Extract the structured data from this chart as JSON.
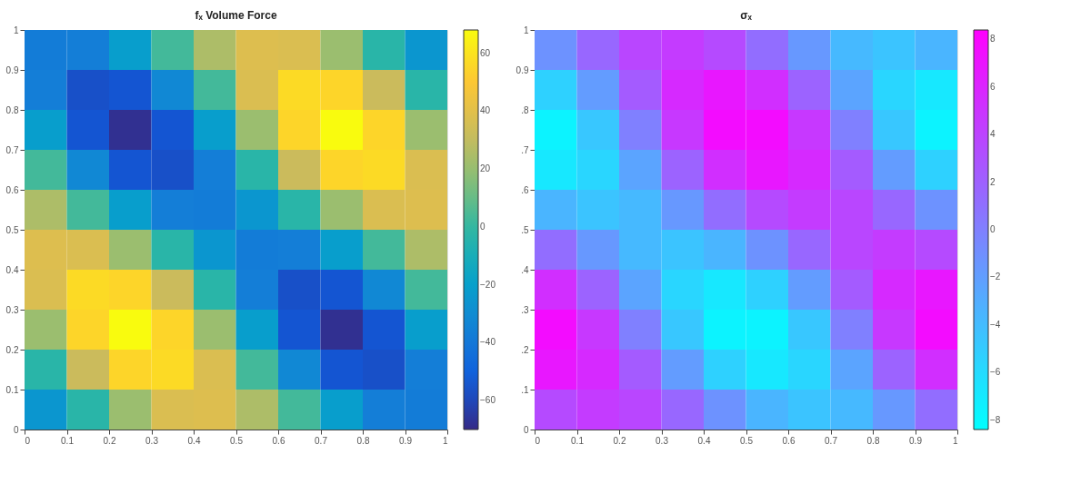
{
  "chart_data": [
    {
      "type": "heatmap",
      "title": "fₓ Volume Force",
      "x": [
        0.05,
        0.15,
        0.25,
        0.35,
        0.45,
        0.55,
        0.65,
        0.75,
        0.85,
        0.95
      ],
      "y": [
        0.95,
        0.85,
        0.75,
        0.65,
        0.55,
        0.45,
        0.35,
        0.25,
        0.15,
        0.05
      ],
      "cells": [
        [
          -38,
          -37,
          -21,
          3,
          25,
          38,
          37,
          21,
          -3,
          -25
        ],
        [
          -37,
          -57,
          -55,
          -32,
          3,
          37,
          57,
          55,
          32,
          -3
        ],
        [
          -21,
          -55,
          -68,
          -55,
          -21,
          21,
          55,
          68,
          55,
          21
        ],
        [
          3,
          -32,
          -55,
          -57,
          -37,
          -3,
          32,
          55,
          57,
          37
        ],
        [
          25,
          3,
          -21,
          -37,
          -38,
          -25,
          -3,
          21,
          37,
          38
        ],
        [
          38,
          37,
          21,
          -3,
          -25,
          -38,
          -37,
          -21,
          3,
          25
        ],
        [
          37,
          57,
          55,
          32,
          -3,
          -37,
          -57,
          -55,
          -32,
          3
        ],
        [
          21,
          55,
          68,
          55,
          21,
          -21,
          -55,
          -68,
          -55,
          -21
        ],
        [
          -3,
          32,
          55,
          57,
          37,
          3,
          -32,
          -55,
          -57,
          -37
        ],
        [
          -25,
          -3,
          21,
          37,
          38,
          25,
          3,
          -21,
          -37,
          -38
        ]
      ],
      "colors": [
        "#352a87",
        "#0f5cdd",
        "#1481d6",
        "#06a4ca",
        "#2eb7a4",
        "#87bf77",
        "#d1bb59",
        "#fec832",
        "#f9fb0e"
      ],
      "xlim": [
        0,
        1
      ],
      "ylim": [
        0,
        1
      ],
      "xticks": [
        0,
        0.1,
        0.2,
        0.3,
        0.4,
        0.5,
        0.6,
        0.7,
        0.8,
        0.9,
        1
      ],
      "yticks": [
        0,
        0.1,
        0.2,
        0.3,
        0.4,
        0.5,
        0.6,
        0.7,
        0.8,
        0.9,
        1
      ],
      "clim": [
        -70,
        68
      ],
      "cticks": [
        -60,
        -40,
        -20,
        0,
        20,
        40,
        60
      ],
      "grid": false
    },
    {
      "type": "heatmap",
      "title": "σₓ",
      "x": [
        0.05,
        0.15,
        0.25,
        0.35,
        0.45,
        0.55,
        0.65,
        0.75,
        0.85,
        0.95
      ],
      "y": [
        0.95,
        0.85,
        0.75,
        0.65,
        0.55,
        0.45,
        0.35,
        0.25,
        0.15,
        0.05
      ],
      "cells": [
        [
          -1.2,
          1.6,
          3.8,
          4.5,
          3.5,
          1.2,
          -1.6,
          -3.8,
          -4.5,
          -3.5
        ],
        [
          -5.4,
          -1.9,
          2.4,
          5.7,
          6.9,
          5.4,
          1.9,
          -2.4,
          -5.7,
          -6.9
        ],
        [
          -7.6,
          -4.7,
          0,
          4.7,
          7.6,
          7.6,
          4.7,
          0,
          -4.7,
          -7.6
        ],
        [
          -6.9,
          -5.7,
          -2.4,
          1.9,
          5.4,
          6.9,
          5.7,
          2.4,
          -1.9,
          -5.4
        ],
        [
          -3.5,
          -4.5,
          -3.8,
          -1.6,
          1.2,
          3.5,
          4.5,
          3.8,
          1.6,
          -1.2
        ],
        [
          1.2,
          -1.6,
          -3.8,
          -4.5,
          -3.5,
          -1.2,
          1.6,
          3.8,
          4.5,
          3.5
        ],
        [
          5.4,
          1.9,
          -2.4,
          -5.7,
          -6.9,
          -5.4,
          -1.9,
          2.4,
          5.7,
          6.9
        ],
        [
          7.6,
          4.7,
          0,
          -4.7,
          -7.6,
          -7.6,
          -4.7,
          0,
          4.7,
          7.6
        ],
        [
          6.9,
          5.7,
          2.4,
          -1.9,
          -5.4,
          -6.9,
          -5.7,
          -2.4,
          1.9,
          5.4
        ],
        [
          3.5,
          4.5,
          3.8,
          1.6,
          -1.2,
          -3.5,
          -4.5,
          -3.8,
          -1.6,
          1.2
        ]
      ],
      "colors": [
        "#00ffff",
        "#ff00ff"
      ],
      "xlim": [
        0,
        1
      ],
      "ylim": [
        0,
        1
      ],
      "xticks": [
        0,
        0.1,
        0.2,
        0.3,
        0.4,
        0.5,
        0.6,
        0.7,
        0.8,
        0.9,
        1
      ],
      "yticks": [
        0,
        {
          "value": 0.1,
          "label": ".1"
        },
        {
          "value": 0.2,
          "label": ".2"
        },
        {
          "value": 0.3,
          "label": ".3"
        },
        {
          "value": 0.4,
          "label": ".4"
        },
        {
          "value": 0.5,
          "label": ".5"
        },
        {
          "value": 0.6,
          "label": ".6"
        },
        {
          "value": 0.7,
          "label": ".7"
        },
        {
          "value": 0.8,
          "label": ".8"
        },
        0.9,
        1
      ],
      "clim": [
        -8.4,
        8.4
      ],
      "cticks": [
        -8,
        -6,
        -4,
        -2,
        0,
        2,
        4,
        6,
        8
      ],
      "grid": false
    }
  ]
}
